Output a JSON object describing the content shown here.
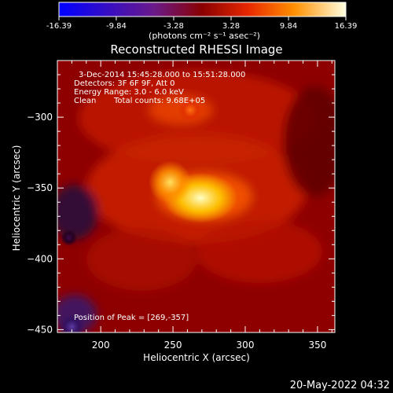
{
  "chart_data": {
    "type": "heatmap",
    "title": "Reconstructed RHESSI Image",
    "xlabel": "Heliocentric X (arcsec)",
    "ylabel": "Heliocentric Y (arcsec)",
    "xlim": [
      170,
      362
    ],
    "ylim": [
      -452,
      -260
    ],
    "xticks": [
      200,
      250,
      300,
      350
    ],
    "yticks": [
      -300,
      -350,
      -400,
      -450
    ],
    "colorbar": {
      "range": [
        -16.39,
        16.39
      ],
      "ticks": [
        "-16.39",
        "-9.84",
        "-3.28",
        "3.28",
        "9.84",
        "16.39"
      ],
      "label": "(photons cm⁻² s⁻¹ asec⁻²)"
    },
    "annotations": [
      "3-Dec-2014 15:45:28.000 to 15:51:28.000",
      "Detectors: 3F 6F 9F, Att 0",
      "Energy Range: 3.0 - 6.0 keV",
      "Clean",
      "Total counts: 9.68E+05",
      "Position of Peak = [269,-357]"
    ],
    "peak": {
      "x": 269,
      "y": -357
    },
    "sources": [
      {
        "x": 269,
        "y": -357,
        "value": 16.4
      },
      {
        "x": 248,
        "y": -346,
        "value": 13.5
      },
      {
        "x": 262,
        "y": -295,
        "value": 6.5
      },
      {
        "x": 178,
        "y": -385,
        "value": -3.0
      },
      {
        "x": 180,
        "y": -448,
        "value": -6.5
      }
    ]
  },
  "footer": {
    "date": "20-May-2022 04:32"
  }
}
